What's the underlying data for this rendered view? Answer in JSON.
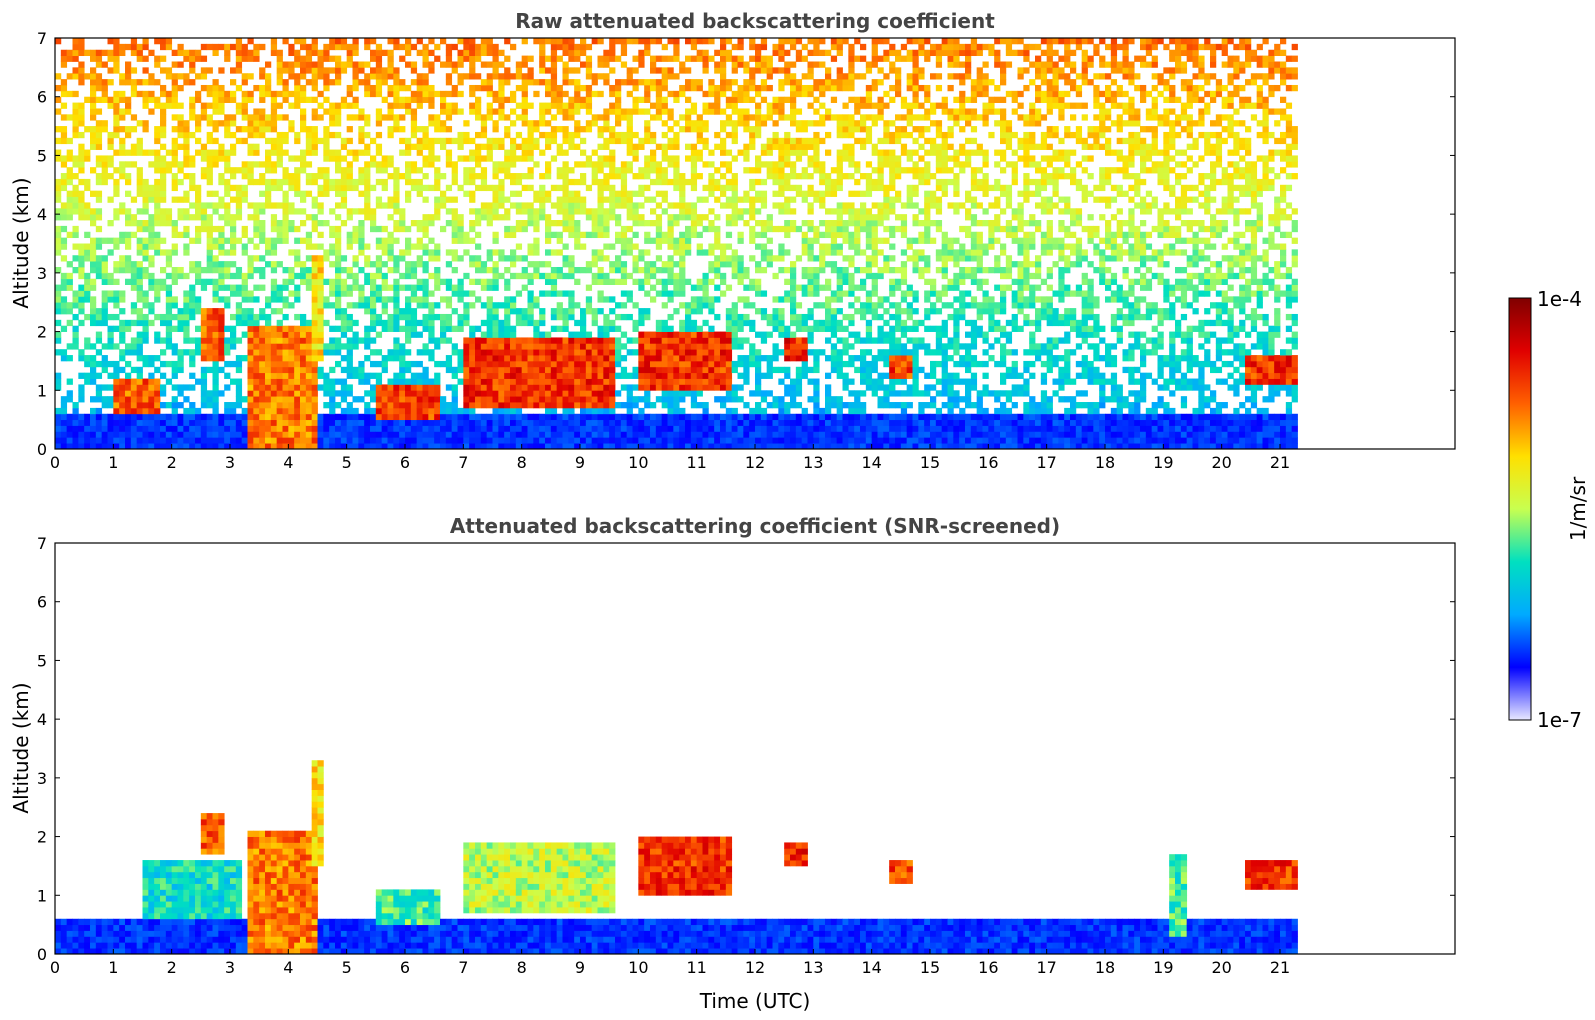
{
  "chart_data": [
    {
      "type": "heatmap",
      "title": "Raw attenuated backscattering coefficient",
      "xlabel": "",
      "ylabel": "Altitude (km)",
      "xlim": [
        0,
        24
      ],
      "ylim": [
        0,
        7
      ],
      "x_ticks": [
        0,
        1,
        2,
        3,
        4,
        5,
        6,
        7,
        8,
        9,
        10,
        11,
        12,
        13,
        14,
        15,
        16,
        17,
        18,
        19,
        20,
        21
      ],
      "y_ticks": [
        0,
        1,
        2,
        3,
        4,
        5,
        6,
        7
      ],
      "data_end_time": 21.3,
      "noise": "strong",
      "features": [
        {
          "t0": 3.3,
          "t1": 4.5,
          "z0": 0.0,
          "z1": 2.1,
          "level": 0.82
        },
        {
          "t0": 4.35,
          "t1": 4.55,
          "z0": 1.5,
          "z1": 3.3,
          "level": 0.7
        },
        {
          "t0": 1.0,
          "t1": 1.8,
          "z0": 0.6,
          "z1": 1.1,
          "level": 0.85
        },
        {
          "t0": 2.5,
          "t1": 2.9,
          "z0": 1.5,
          "z1": 2.4,
          "level": 0.85
        },
        {
          "t0": 5.5,
          "t1": 6.5,
          "z0": 0.5,
          "z1": 1.0,
          "level": 0.88
        },
        {
          "t0": 7.0,
          "t1": 9.5,
          "z0": 0.7,
          "z1": 1.9,
          "level": 0.9
        },
        {
          "t0": 10.0,
          "t1": 11.5,
          "z0": 1.0,
          "z1": 2.0,
          "level": 0.9
        },
        {
          "t0": 12.5,
          "t1": 12.8,
          "z0": 1.5,
          "z1": 1.9,
          "level": 0.92
        },
        {
          "t0": 14.3,
          "t1": 14.6,
          "z0": 1.2,
          "z1": 1.6,
          "level": 0.88
        },
        {
          "t0": 20.4,
          "t1": 21.3,
          "z0": 1.1,
          "z1": 1.6,
          "level": 0.9
        }
      ]
    },
    {
      "type": "heatmap",
      "title": "Attenuated backscattering coefficient (SNR-screened)",
      "xlabel": "Time (UTC)",
      "ylabel": "Altitude (km)",
      "xlim": [
        0,
        24
      ],
      "ylim": [
        0,
        7
      ],
      "x_ticks": [
        0,
        1,
        2,
        3,
        4,
        5,
        6,
        7,
        8,
        9,
        10,
        11,
        12,
        13,
        14,
        15,
        16,
        17,
        18,
        19,
        20,
        21
      ],
      "y_ticks": [
        0,
        1,
        2,
        3,
        4,
        5,
        6,
        7
      ],
      "data_end_time": 21.3,
      "noise": "none",
      "features": [
        {
          "t0": 3.3,
          "t1": 4.5,
          "z0": 0.0,
          "z1": 2.1,
          "level": 0.82
        },
        {
          "t0": 4.35,
          "t1": 4.55,
          "z0": 1.5,
          "z1": 3.3,
          "level": 0.7
        },
        {
          "t0": 1.5,
          "t1": 3.2,
          "z0": 0.6,
          "z1": 1.6,
          "level": 0.45
        },
        {
          "t0": 2.5,
          "t1": 2.9,
          "z0": 1.7,
          "z1": 2.4,
          "level": 0.85
        },
        {
          "t0": 5.5,
          "t1": 6.5,
          "z0": 0.5,
          "z1": 1.0,
          "level": 0.5
        },
        {
          "t0": 7.0,
          "t1": 9.5,
          "z0": 0.7,
          "z1": 1.9,
          "level": 0.6
        },
        {
          "t0": 10.0,
          "t1": 11.5,
          "z0": 1.0,
          "z1": 2.0,
          "level": 0.9
        },
        {
          "t0": 12.5,
          "t1": 12.8,
          "z0": 1.5,
          "z1": 1.9,
          "level": 0.92
        },
        {
          "t0": 14.3,
          "t1": 14.6,
          "z0": 1.2,
          "z1": 1.6,
          "level": 0.88
        },
        {
          "t0": 19.1,
          "t1": 19.4,
          "z0": 0.3,
          "z1": 1.7,
          "level": 0.5
        },
        {
          "t0": 20.4,
          "t1": 21.3,
          "z0": 1.1,
          "z1": 1.6,
          "level": 0.9
        }
      ]
    }
  ],
  "colorbar": {
    "label": "1/m/sr",
    "max_label": "1e-4",
    "min_label": "1e-7",
    "colors": [
      "#e8e8ff",
      "#0000ff",
      "#00aaff",
      "#00e0c0",
      "#c8ff50",
      "#ffe000",
      "#ff6000",
      "#e00000",
      "#800000"
    ]
  }
}
